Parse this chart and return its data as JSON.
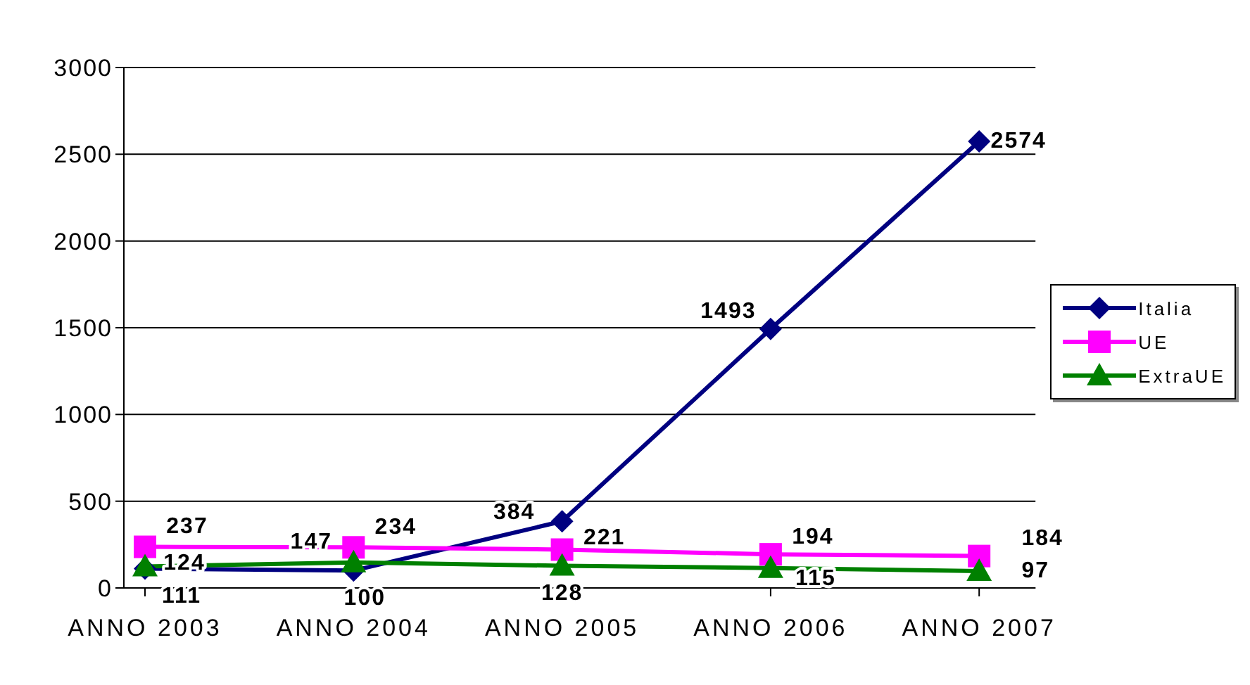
{
  "chart_data": {
    "type": "line",
    "categories": [
      "ANNO 2003",
      "ANNO 2004",
      "ANNO 2005",
      "ANNO 2006",
      "ANNO 2007"
    ],
    "series": [
      {
        "name": "Italia",
        "color": "#000080",
        "marker": "diamond",
        "values": [
          111,
          100,
          384,
          1493,
          2574
        ]
      },
      {
        "name": "UE",
        "color": "#ff00ff",
        "marker": "square",
        "values": [
          237,
          234,
          221,
          194,
          184
        ]
      },
      {
        "name": "ExtraUE",
        "color": "#008000",
        "marker": "triangle",
        "values": [
          124,
          147,
          128,
          115,
          97
        ]
      }
    ],
    "ylim": [
      0,
      3000
    ],
    "yticks": [
      0,
      500,
      1000,
      1500,
      2000,
      2500,
      3000
    ],
    "grid": "y",
    "legend": "right",
    "data_labels": true
  }
}
